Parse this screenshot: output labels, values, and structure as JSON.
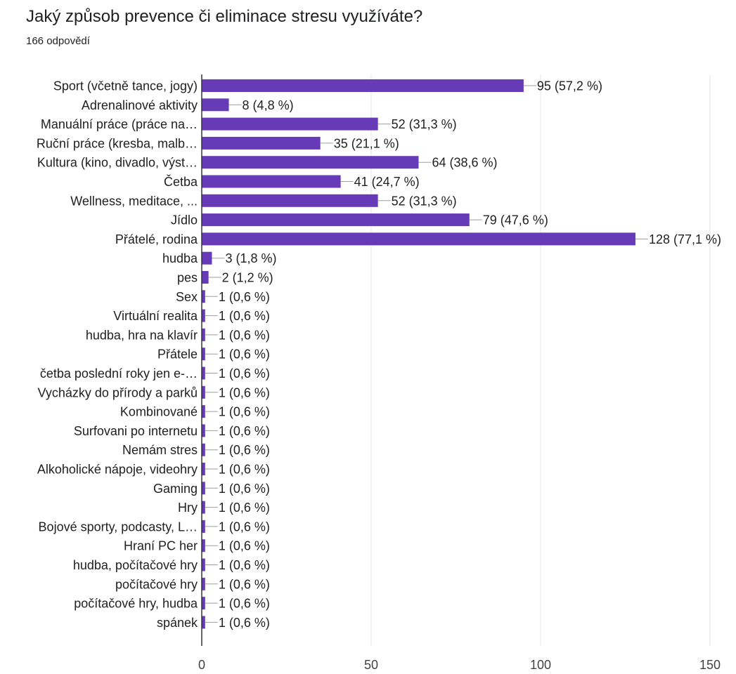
{
  "chart_data": {
    "type": "bar",
    "orientation": "horizontal",
    "title": "Jaký způsob prevence či eliminace stresu využíváte?",
    "subtitle": "166 odpovědí",
    "xlim": [
      0,
      150
    ],
    "x_ticks": [
      0,
      50,
      100,
      150
    ],
    "grid": true,
    "bar_color": "#673ab7",
    "categories": [
      "Sport (včetně tance, jogy)",
      "Adrenalinové aktivity",
      "Manuální práce (práce na…",
      "Ruční práce (kresba, malb…",
      "Kultura (kino, divadlo, výst…",
      "Četba",
      "Wellness, meditace, ...",
      "Jídlo",
      "Přátelé, rodina",
      "hudba",
      "pes",
      "Sex",
      "Virtuální realita",
      "hudba, hra na klavír",
      "Přátele",
      "četba poslední roky jen e-…",
      "Vycházky do přírody a parků",
      "Kombinované",
      "Surfovani po internetu",
      "Nemám stres",
      "Alkoholické nápoje, videohry",
      "Gaming",
      "Hry",
      "Bojové sporty, podcasty, L…",
      "Hraní PC her",
      "hudba, počítačové hry",
      "počítačové hry",
      "počítačové hry, hudba",
      "spánek"
    ],
    "values": [
      95,
      8,
      52,
      35,
      64,
      41,
      52,
      79,
      128,
      3,
      2,
      1,
      1,
      1,
      1,
      1,
      1,
      1,
      1,
      1,
      1,
      1,
      1,
      1,
      1,
      1,
      1,
      1,
      1
    ],
    "value_labels": [
      "95 (57,2 %)",
      "8 (4,8 %)",
      "52 (31,3 %)",
      "35 (21,1 %)",
      "64 (38,6 %)",
      "41 (24,7 %)",
      "52 (31,3 %)",
      "79 (47,6 %)",
      "128 (77,1 %)",
      "3 (1,8 %)",
      "2 (1,2 %)",
      "1 (0,6 %)",
      "1 (0,6 %)",
      "1 (0,6 %)",
      "1 (0,6 %)",
      "1 (0,6 %)",
      "1 (0,6 %)",
      "1 (0,6 %)",
      "1 (0,6 %)",
      "1 (0,6 %)",
      "1 (0,6 %)",
      "1 (0,6 %)",
      "1 (0,6 %)",
      "1 (0,6 %)",
      "1 (0,6 %)",
      "1 (0,6 %)",
      "1 (0,6 %)",
      "1 (0,6 %)",
      "1 (0,6 %)"
    ]
  }
}
